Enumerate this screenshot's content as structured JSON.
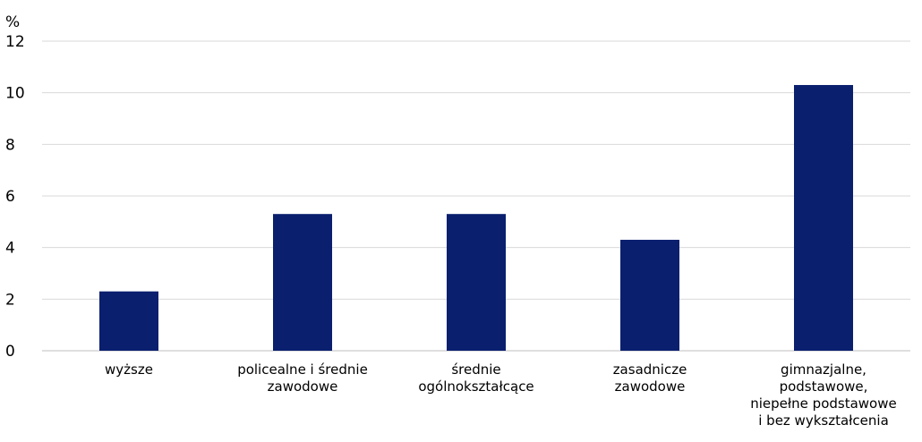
{
  "chart_data": {
    "type": "bar",
    "ylabel": "%",
    "ylim": [
      0,
      12
    ],
    "yticks": [
      0,
      2,
      4,
      6,
      8,
      10,
      12
    ],
    "grid": true,
    "categories": [
      [
        "wyższe"
      ],
      [
        "policealne i średnie",
        "zawodowe"
      ],
      [
        "średnie",
        "ogólnokształcące"
      ],
      [
        "zasadnicze",
        "zawodowe"
      ],
      [
        "gimnazjalne,",
        "podstawowe,",
        "niepełne podstawowe",
        "i bez wykształcenia"
      ]
    ],
    "values": [
      2.3,
      5.3,
      5.3,
      4.3,
      10.3
    ],
    "colors": {
      "bar": "#0a1f6e",
      "grid": "#d9d9d9",
      "axis": "#bfbfbf"
    }
  }
}
